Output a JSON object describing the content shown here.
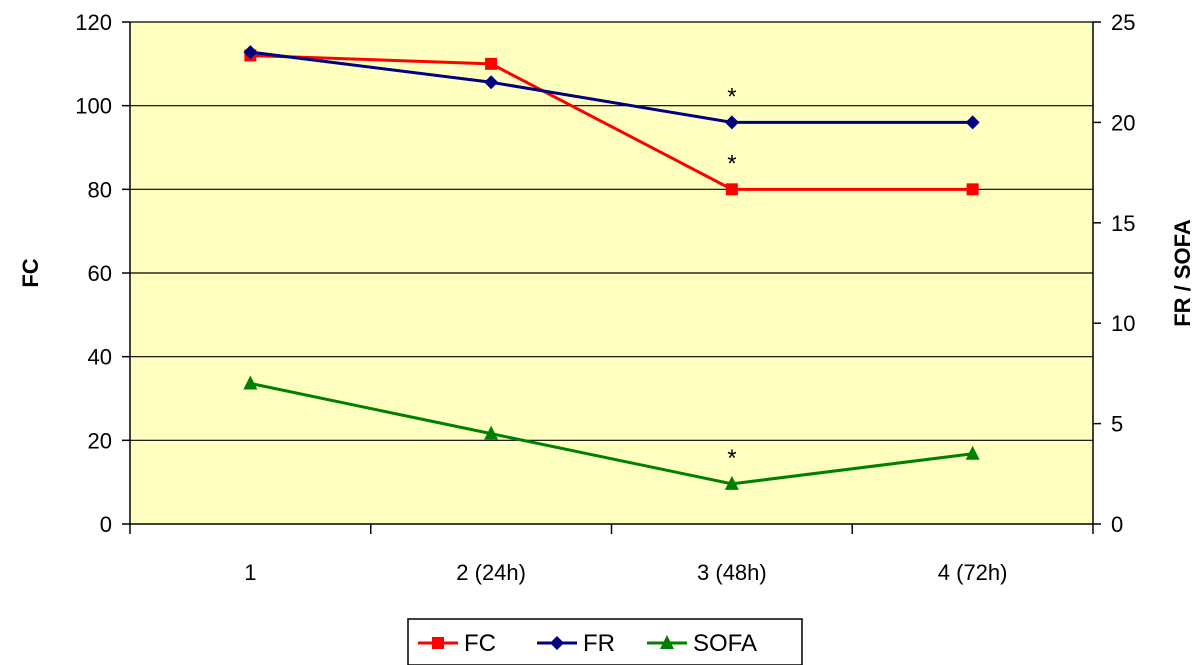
{
  "chart_data": {
    "type": "line",
    "categories": [
      "1",
      "2 (24h)",
      "3 (48h)",
      "4 (72h)"
    ],
    "ylabel": "FC",
    "y2label": "FR / SOFA",
    "ylim": [
      0,
      120
    ],
    "y2lim": [
      0,
      25
    ],
    "yticks": [
      "0",
      "20",
      "40",
      "60",
      "80",
      "100",
      "120"
    ],
    "y2ticks": [
      "0",
      "5",
      "10",
      "15",
      "20",
      "25"
    ],
    "grid": true,
    "legend_position": "bottom",
    "series": [
      {
        "name": "FC",
        "axis": "left",
        "marker": "square",
        "color": "#ff0000",
        "values": [
          112,
          110,
          80,
          80
        ]
      },
      {
        "name": "FR",
        "axis": "right",
        "marker": "diamond",
        "color": "#000080",
        "values": [
          23.5,
          22,
          20,
          20
        ]
      },
      {
        "name": "SOFA",
        "axis": "right",
        "marker": "triangle",
        "color": "#008000",
        "values": [
          7,
          4.5,
          2,
          3.5
        ]
      }
    ],
    "annotations": [
      {
        "text": "*",
        "series": "FR",
        "category": "3 (48h)"
      },
      {
        "text": "*",
        "series": "FC",
        "category": "3 (48h)"
      },
      {
        "text": "*",
        "series": "SOFA",
        "category": "3 (48h)"
      }
    ],
    "plot_background": "#ffffc0"
  }
}
